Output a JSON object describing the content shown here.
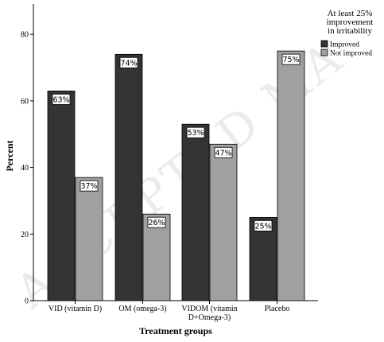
{
  "watermark": "ACCEPTED MA",
  "chart_data": {
    "type": "bar",
    "xlabel": "Treatment groups",
    "ylabel": "Percent",
    "ylim": [
      0,
      88
    ],
    "yticks": [
      0,
      20,
      40,
      60,
      80
    ],
    "grid": false,
    "legend_position": "top-right",
    "legend_title": "At least 25% improvement in irritability",
    "categories": [
      [
        "VID (vitamin D)"
      ],
      [
        "OM (omega-3)"
      ],
      [
        "VIDOM (vitamin",
        "D+Omega-3)"
      ],
      [
        "Placebo"
      ]
    ],
    "series": [
      {
        "name": "Improved",
        "color": "#333333",
        "values": [
          63,
          74,
          53,
          25
        ],
        "labels": [
          "63%",
          "74%",
          "53%",
          "25%"
        ]
      },
      {
        "name": "Not improved",
        "color": "#a0a0a0",
        "values": [
          37,
          26,
          47,
          75
        ],
        "labels": [
          "37%",
          "26%",
          "47%",
          "75%"
        ]
      }
    ]
  }
}
